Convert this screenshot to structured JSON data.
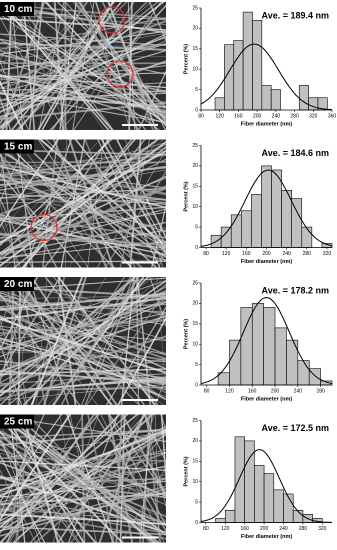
{
  "images": [
    {
      "label": "10 cm"
    },
    {
      "label": "15 cm"
    },
    {
      "label": "20 cm"
    },
    {
      "label": "25 cm"
    }
  ],
  "chart_data": [
    {
      "type": "histogram",
      "annotation": "Ave. = 189.4 nm",
      "xlabel": "Fiber diameter (nm)",
      "ylabel": "Percent (%)",
      "color": "#c0c0c0",
      "fit_curve": true,
      "bins": [
        110,
        130,
        150,
        170,
        190,
        210,
        230,
        250,
        270,
        290,
        310,
        330,
        350
      ],
      "values": [
        3,
        16,
        17,
        24,
        22,
        6,
        5,
        0,
        0,
        6,
        3,
        3
      ],
      "xlim": [
        80,
        360
      ],
      "xticks": [
        80,
        120,
        160,
        200,
        240,
        280,
        320,
        360
      ],
      "ylim": [
        0,
        25
      ],
      "yticks": [
        0,
        5,
        10,
        15,
        20,
        25
      ]
    },
    {
      "type": "histogram",
      "annotation": "Ave. = 184.6 nm",
      "xlabel": "Fiber diameter (nm)",
      "ylabel": "Percent (%)",
      "color": "#c0c0c0",
      "fit_curve": true,
      "bins": [
        90,
        110,
        130,
        150,
        170,
        190,
        210,
        230,
        250,
        270,
        290,
        310,
        330
      ],
      "values": [
        3,
        5,
        8,
        9,
        13,
        20,
        19,
        14,
        12,
        5,
        0,
        1
      ],
      "xlim": [
        70,
        330
      ],
      "xticks": [
        80,
        120,
        160,
        200,
        240,
        280,
        320
      ],
      "ylim": [
        0,
        25
      ],
      "yticks": [
        0,
        5,
        10,
        15,
        20,
        25
      ]
    },
    {
      "type": "histogram",
      "annotation": "Ave. = 178.2 nm",
      "xlabel": "Fiber diameter (nm)",
      "ylabel": "Percent (%)",
      "color": "#c0c0c0",
      "fit_curve": true,
      "bins": [
        100,
        120,
        140,
        160,
        180,
        200,
        220,
        240,
        260,
        280,
        300
      ],
      "values": [
        3,
        11,
        19,
        20,
        19,
        14,
        11,
        6,
        4,
        1
      ],
      "xlim": [
        70,
        300
      ],
      "xticks": [
        80,
        120,
        160,
        200,
        240,
        280
      ],
      "ylim": [
        0,
        25
      ],
      "yticks": [
        0,
        5,
        10,
        15,
        20,
        25
      ]
    },
    {
      "type": "histogram",
      "annotation": "Ave. = 172.5 nm",
      "xlabel": "Fiber diameter (nm)",
      "ylabel": "Percent (%)",
      "color": "#c0c0c0",
      "fit_curve": true,
      "bins": [
        100,
        120,
        140,
        160,
        180,
        200,
        220,
        240,
        260,
        280,
        300,
        320
      ],
      "values": [
        1,
        3,
        21,
        20,
        14,
        12,
        8,
        7,
        3,
        2,
        1
      ],
      "xlim": [
        70,
        340
      ],
      "xticks": [
        80,
        120,
        160,
        200,
        240,
        280,
        320
      ],
      "ylim": [
        0,
        25
      ],
      "yticks": [
        0,
        5,
        10,
        15,
        20,
        25
      ]
    }
  ]
}
